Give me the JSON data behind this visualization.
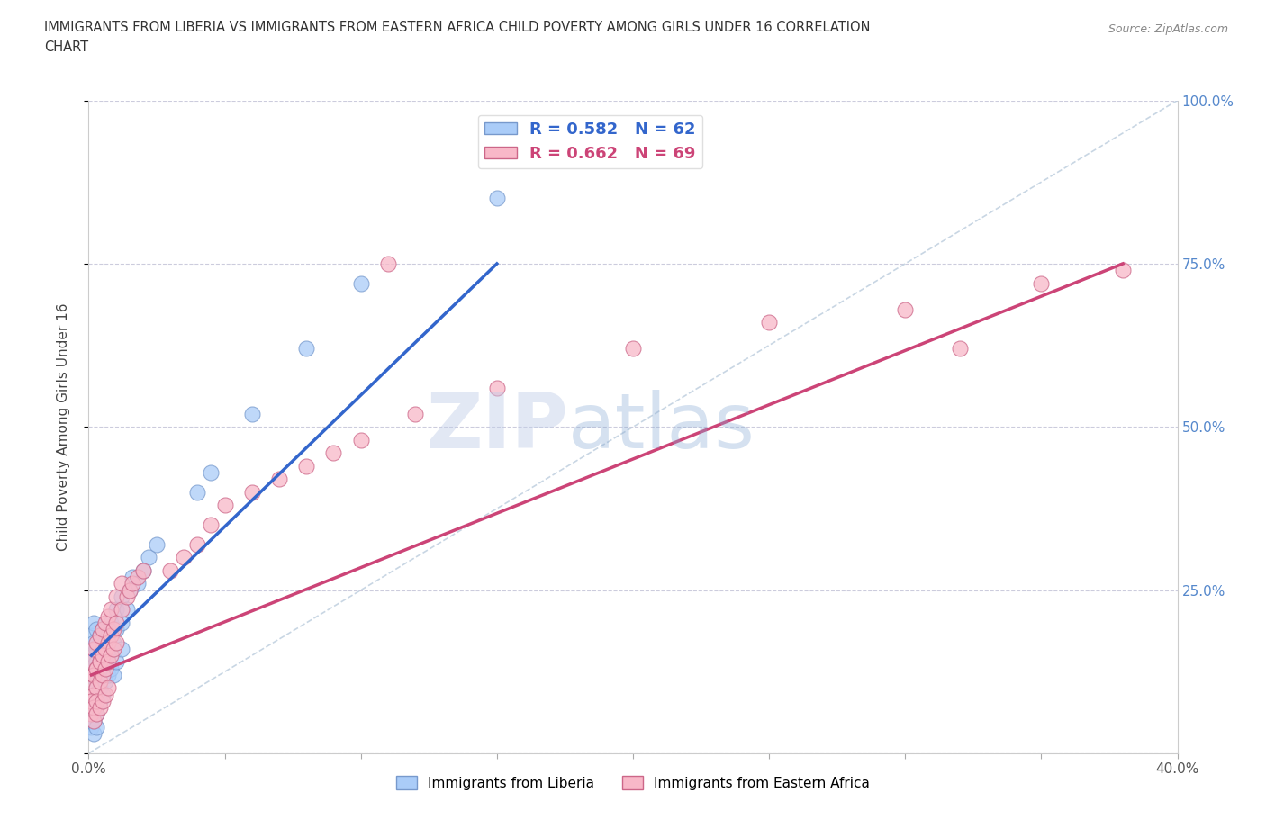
{
  "title_line1": "IMMIGRANTS FROM LIBERIA VS IMMIGRANTS FROM EASTERN AFRICA CHILD POVERTY AMONG GIRLS UNDER 16 CORRELATION",
  "title_line2": "CHART",
  "source": "Source: ZipAtlas.com",
  "ylabel": "Child Poverty Among Girls Under 16",
  "xlim": [
    0.0,
    0.4
  ],
  "ylim": [
    0.0,
    1.0
  ],
  "xticks": [
    0.0,
    0.05,
    0.1,
    0.15,
    0.2,
    0.25,
    0.3,
    0.35,
    0.4
  ],
  "xtick_labels": [
    "0.0%",
    "",
    "",
    "",
    "",
    "",
    "",
    "",
    "40.0%"
  ],
  "yticks": [
    0.0,
    0.25,
    0.5,
    0.75,
    1.0
  ],
  "ytick_labels": [
    "",
    "25.0%",
    "50.0%",
    "75.0%",
    "100.0%"
  ],
  "liberia_color": "#aaccf8",
  "liberia_edge": "#7799cc",
  "eastern_color": "#f8b8c8",
  "eastern_edge": "#cc6688",
  "liberia_line_color": "#3366cc",
  "eastern_line_color": "#cc4477",
  "diag_line_color": "#bbccdd",
  "R_liberia": 0.582,
  "N_liberia": 62,
  "R_eastern": 0.662,
  "N_eastern": 69,
  "watermark_zip": "ZIP",
  "watermark_atlas": "atlas",
  "legend_liberia": "Immigrants from Liberia",
  "legend_eastern": "Immigrants from Eastern Africa",
  "liberia_scatter": [
    [
      0.001,
      0.14
    ],
    [
      0.001,
      0.16
    ],
    [
      0.001,
      0.18
    ],
    [
      0.002,
      0.12
    ],
    [
      0.002,
      0.15
    ],
    [
      0.002,
      0.17
    ],
    [
      0.002,
      0.2
    ],
    [
      0.003,
      0.1
    ],
    [
      0.003,
      0.14
    ],
    [
      0.003,
      0.16
    ],
    [
      0.003,
      0.19
    ],
    [
      0.004,
      0.12
    ],
    [
      0.004,
      0.15
    ],
    [
      0.004,
      0.18
    ],
    [
      0.005,
      0.13
    ],
    [
      0.005,
      0.16
    ],
    [
      0.005,
      0.19
    ],
    [
      0.006,
      0.14
    ],
    [
      0.006,
      0.17
    ],
    [
      0.007,
      0.15
    ],
    [
      0.007,
      0.18
    ],
    [
      0.008,
      0.16
    ],
    [
      0.008,
      0.2
    ],
    [
      0.009,
      0.17
    ],
    [
      0.01,
      0.19
    ],
    [
      0.01,
      0.22
    ],
    [
      0.012,
      0.2
    ],
    [
      0.012,
      0.24
    ],
    [
      0.014,
      0.22
    ],
    [
      0.015,
      0.25
    ],
    [
      0.016,
      0.27
    ],
    [
      0.018,
      0.26
    ],
    [
      0.02,
      0.28
    ],
    [
      0.022,
      0.3
    ],
    [
      0.025,
      0.32
    ],
    [
      0.001,
      0.08
    ],
    [
      0.002,
      0.06
    ],
    [
      0.002,
      0.09
    ],
    [
      0.003,
      0.07
    ],
    [
      0.003,
      0.11
    ],
    [
      0.004,
      0.08
    ],
    [
      0.004,
      0.1
    ],
    [
      0.005,
      0.09
    ],
    [
      0.005,
      0.12
    ],
    [
      0.006,
      0.11
    ],
    [
      0.007,
      0.12
    ],
    [
      0.008,
      0.13
    ],
    [
      0.009,
      0.12
    ],
    [
      0.01,
      0.14
    ],
    [
      0.012,
      0.16
    ],
    [
      0.001,
      0.04
    ],
    [
      0.001,
      0.05
    ],
    [
      0.002,
      0.03
    ],
    [
      0.002,
      0.05
    ],
    [
      0.003,
      0.04
    ],
    [
      0.003,
      0.06
    ],
    [
      0.04,
      0.4
    ],
    [
      0.045,
      0.43
    ],
    [
      0.06,
      0.52
    ],
    [
      0.08,
      0.62
    ],
    [
      0.1,
      0.72
    ],
    [
      0.15,
      0.85
    ]
  ],
  "eastern_scatter": [
    [
      0.001,
      0.14
    ],
    [
      0.002,
      0.12
    ],
    [
      0.002,
      0.16
    ],
    [
      0.003,
      0.13
    ],
    [
      0.003,
      0.17
    ],
    [
      0.004,
      0.14
    ],
    [
      0.004,
      0.18
    ],
    [
      0.005,
      0.15
    ],
    [
      0.005,
      0.19
    ],
    [
      0.006,
      0.16
    ],
    [
      0.006,
      0.2
    ],
    [
      0.007,
      0.17
    ],
    [
      0.007,
      0.21
    ],
    [
      0.008,
      0.18
    ],
    [
      0.008,
      0.22
    ],
    [
      0.009,
      0.19
    ],
    [
      0.01,
      0.2
    ],
    [
      0.01,
      0.24
    ],
    [
      0.012,
      0.22
    ],
    [
      0.012,
      0.26
    ],
    [
      0.014,
      0.24
    ],
    [
      0.015,
      0.25
    ],
    [
      0.016,
      0.26
    ],
    [
      0.018,
      0.27
    ],
    [
      0.02,
      0.28
    ],
    [
      0.001,
      0.1
    ],
    [
      0.002,
      0.09
    ],
    [
      0.002,
      0.12
    ],
    [
      0.003,
      0.1
    ],
    [
      0.003,
      0.13
    ],
    [
      0.004,
      0.11
    ],
    [
      0.004,
      0.14
    ],
    [
      0.005,
      0.12
    ],
    [
      0.005,
      0.15
    ],
    [
      0.006,
      0.13
    ],
    [
      0.006,
      0.16
    ],
    [
      0.007,
      0.14
    ],
    [
      0.008,
      0.15
    ],
    [
      0.009,
      0.16
    ],
    [
      0.01,
      0.17
    ],
    [
      0.001,
      0.06
    ],
    [
      0.001,
      0.08
    ],
    [
      0.002,
      0.05
    ],
    [
      0.002,
      0.07
    ],
    [
      0.003,
      0.06
    ],
    [
      0.003,
      0.08
    ],
    [
      0.004,
      0.07
    ],
    [
      0.005,
      0.08
    ],
    [
      0.006,
      0.09
    ],
    [
      0.007,
      0.1
    ],
    [
      0.03,
      0.28
    ],
    [
      0.035,
      0.3
    ],
    [
      0.04,
      0.32
    ],
    [
      0.045,
      0.35
    ],
    [
      0.05,
      0.38
    ],
    [
      0.06,
      0.4
    ],
    [
      0.07,
      0.42
    ],
    [
      0.08,
      0.44
    ],
    [
      0.09,
      0.46
    ],
    [
      0.1,
      0.48
    ],
    [
      0.12,
      0.52
    ],
    [
      0.15,
      0.56
    ],
    [
      0.2,
      0.62
    ],
    [
      0.25,
      0.66
    ],
    [
      0.3,
      0.68
    ],
    [
      0.35,
      0.72
    ],
    [
      0.38,
      0.74
    ],
    [
      0.11,
      0.75
    ],
    [
      0.32,
      0.62
    ]
  ],
  "liberia_line": [
    [
      0.001,
      0.15
    ],
    [
      0.15,
      0.75
    ]
  ],
  "eastern_line": [
    [
      0.001,
      0.12
    ],
    [
      0.38,
      0.75
    ]
  ]
}
